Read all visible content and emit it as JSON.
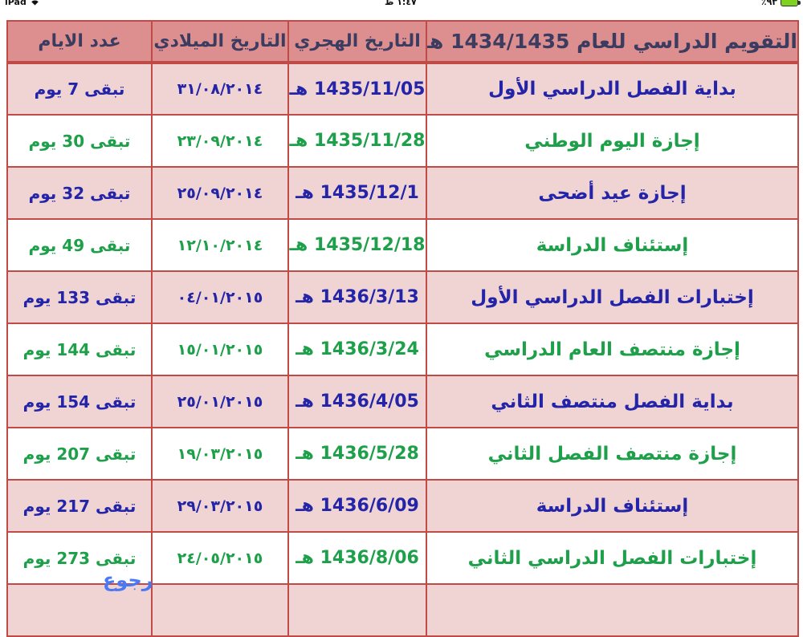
{
  "status_bar": {
    "left": "iPad",
    "center": "١:٤٧ ظ",
    "battery_percent": "٪٩٣"
  },
  "table": {
    "headers": {
      "title": "التقويم الدراسي للعام 1434/1435 هـ",
      "hijri": "التاريخ الهجري",
      "gregorian": "التاريخ الميلادي",
      "days": "عدد الايام"
    },
    "rows": [
      {
        "event": "بداية الفصل الدراسي الأول",
        "hijri": "1435/11/05 هـ",
        "gregorian": "٣١/٠٨/٢٠١٤",
        "days": "تبقى 7 يوم"
      },
      {
        "event": "إجازة اليوم الوطني",
        "hijri": "1435/11/28 هـ",
        "gregorian": "٢٣/٠٩/٢٠١٤",
        "days": "تبقى 30 يوم"
      },
      {
        "event": "إجازة عيد أضحى",
        "hijri": "1435/12/1 هـ",
        "gregorian": "٢٥/٠٩/٢٠١٤",
        "days": "تبقى 32 يوم"
      },
      {
        "event": "إستئناف الدراسة",
        "hijri": "1435/12/18 هـ",
        "gregorian": "١٢/١٠/٢٠١٤",
        "days": "تبقى 49 يوم"
      },
      {
        "event": "إختبارات الفصل الدراسي الأول",
        "hijri": "1436/3/13 هـ",
        "gregorian": "٠٤/٠١/٢٠١٥",
        "days": "تبقى 133 يوم"
      },
      {
        "event": "إجازة منتصف العام الدراسي",
        "hijri": "1436/3/24 هـ",
        "gregorian": "١٥/٠١/٢٠١٥",
        "days": "تبقى 144 يوم"
      },
      {
        "event": "بداية الفصل منتصف الثاني",
        "hijri": "1436/4/05 هـ",
        "gregorian": "٢٥/٠١/٢٠١٥",
        "days": "تبقى 154 يوم"
      },
      {
        "event": "إجازة منتصف الفصل الثاني",
        "hijri": "1436/5/28 هـ",
        "gregorian": "١٩/٠٣/٢٠١٥",
        "days": "تبقى 207 يوم"
      },
      {
        "event": "إستئناف الدراسة",
        "hijri": "1436/6/09 هـ",
        "gregorian": "٢٩/٠٣/٢٠١٥",
        "days": "تبقى 217 يوم"
      },
      {
        "event": "إختبارات الفصل الدراسي الثاني",
        "hijri": "1436/8/06 هـ",
        "gregorian": "٢٤/٠٥/٢٠١٥",
        "days": "تبقى 273 يوم"
      }
    ]
  },
  "back_link": "رجوع",
  "colors": {
    "border": "#c04a45",
    "header_bg": "#dd8f8f",
    "pink_row": "#f0d4d4",
    "white_row": "#ffffff",
    "navy_text": "#2424a8",
    "green_text": "#1ea04a",
    "link_blue": "#4b78f5",
    "battery_green": "#7ed321"
  }
}
